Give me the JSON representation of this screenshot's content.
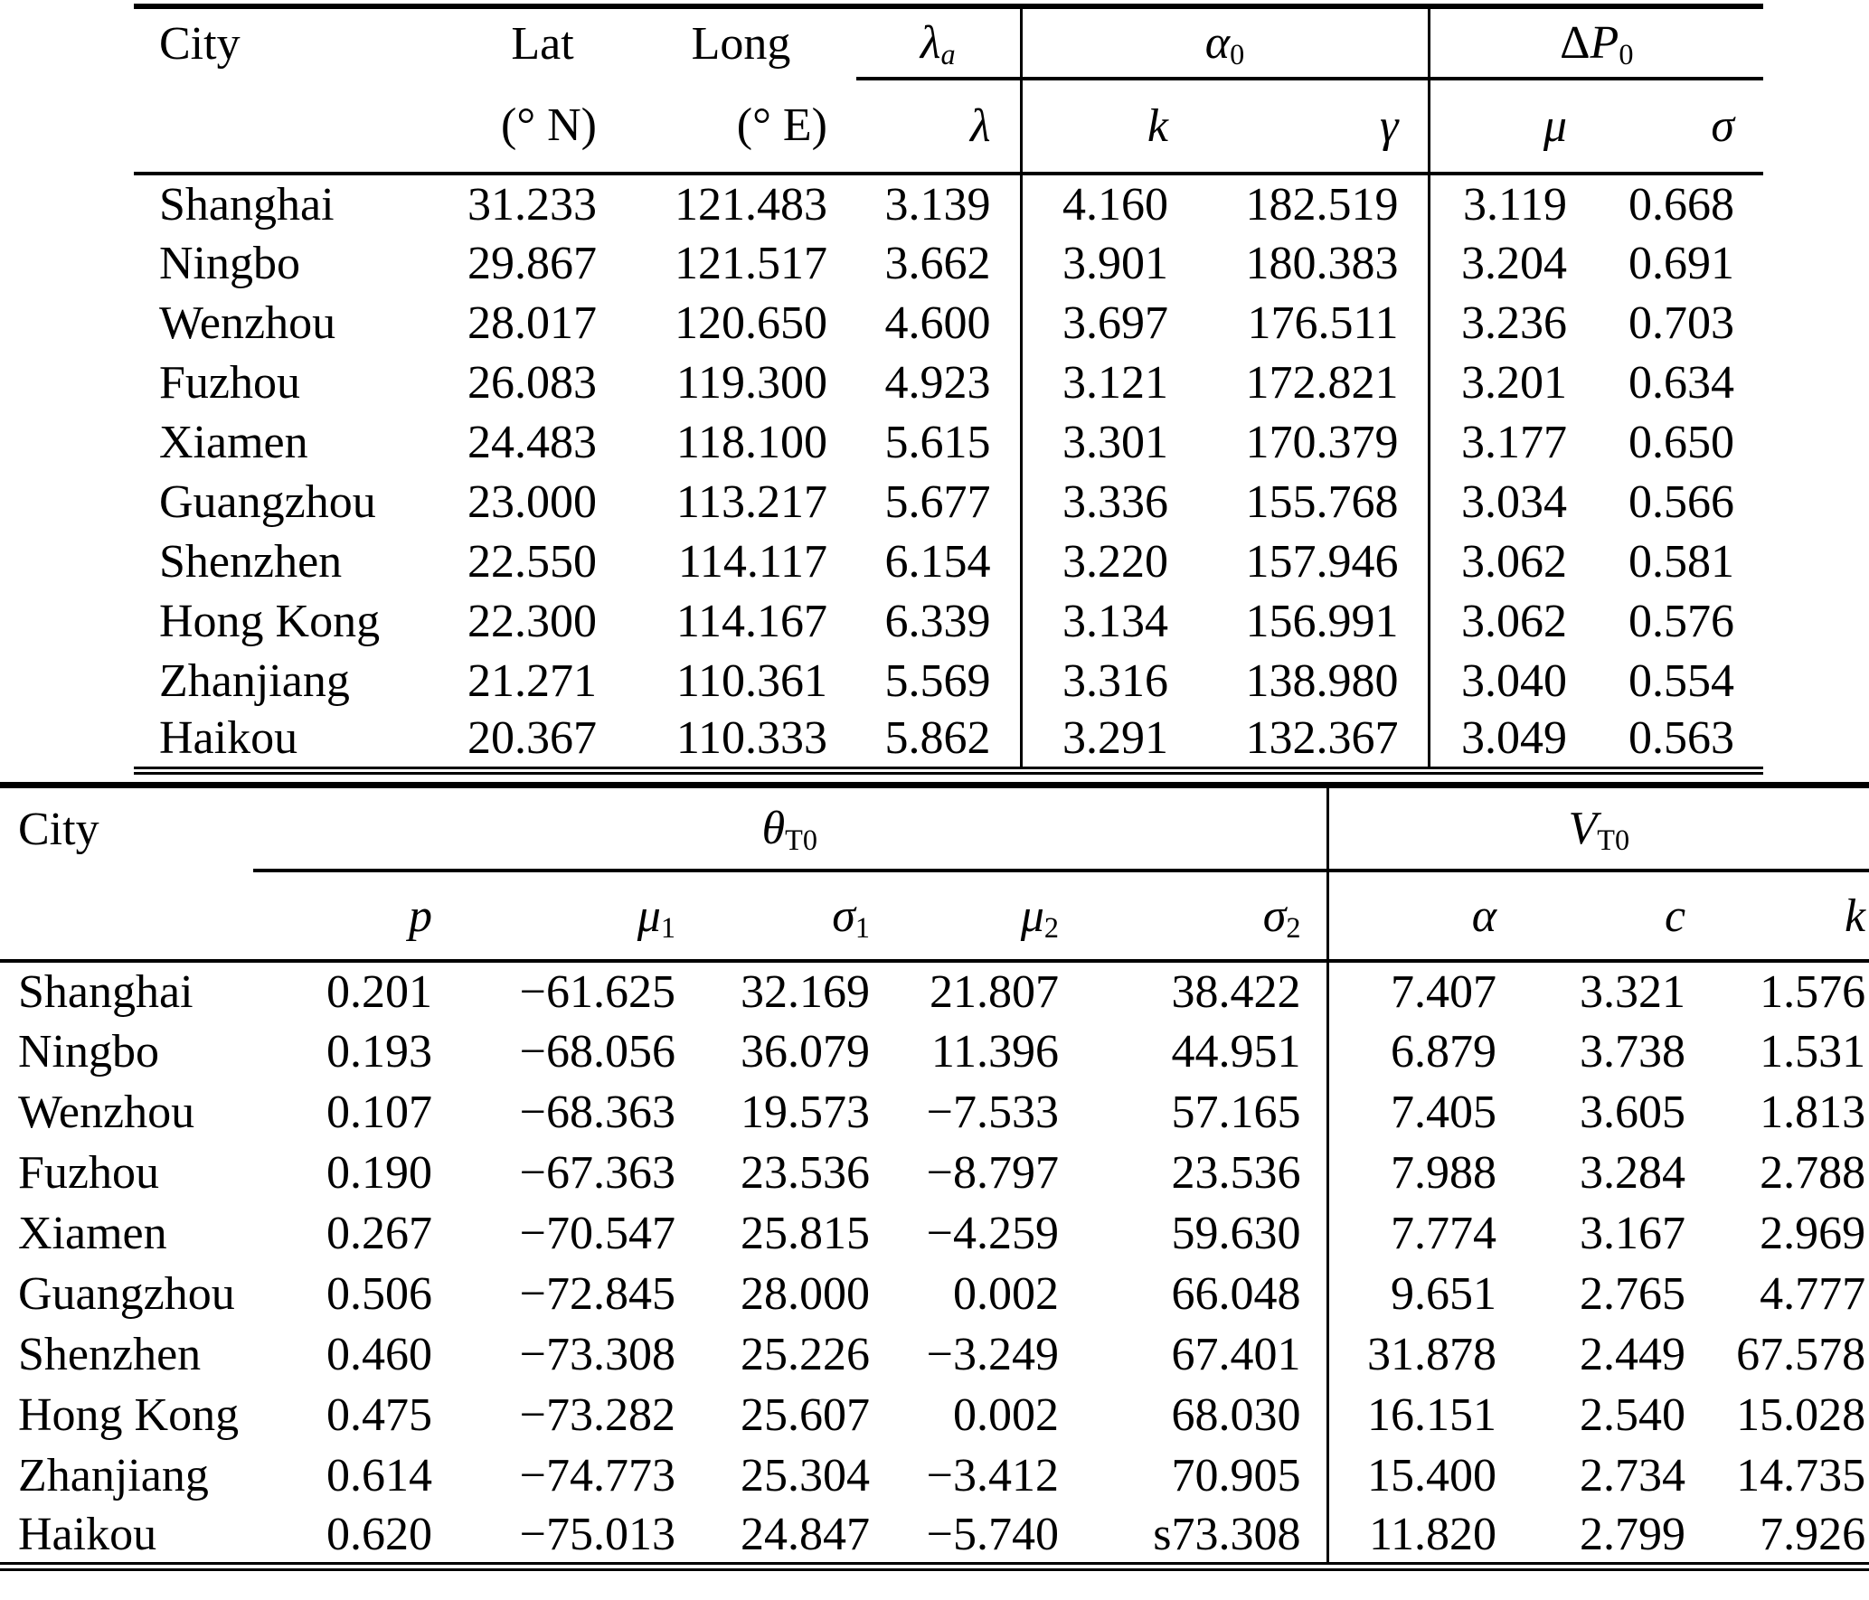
{
  "table1": {
    "headers": {
      "city": "City",
      "lat": "Lat",
      "lat_unit": "(° N)",
      "long": "Long",
      "long_unit": "(° E)",
      "lambda_a": {
        "base": "λ",
        "sub": "a"
      },
      "lambda": "λ",
      "alpha_0": {
        "base": "α",
        "sub": "0"
      },
      "k": "k",
      "gamma": "γ",
      "delta_P0": {
        "prefix": "Δ",
        "base": "P",
        "sub": "0"
      },
      "mu": "μ",
      "sigma": "σ"
    },
    "rows": [
      [
        "Shanghai",
        "31.233",
        "121.483",
        "3.139",
        "4.160",
        "182.519",
        "3.119",
        "0.668"
      ],
      [
        "Ningbo",
        "29.867",
        "121.517",
        "3.662",
        "3.901",
        "180.383",
        "3.204",
        "0.691"
      ],
      [
        "Wenzhou",
        "28.017",
        "120.650",
        "4.600",
        "3.697",
        "176.511",
        "3.236",
        "0.703"
      ],
      [
        "Fuzhou",
        "26.083",
        "119.300",
        "4.923",
        "3.121",
        "172.821",
        "3.201",
        "0.634"
      ],
      [
        "Xiamen",
        "24.483",
        "118.100",
        "5.615",
        "3.301",
        "170.379",
        "3.177",
        "0.650"
      ],
      [
        "Guangzhou",
        "23.000",
        "113.217",
        "5.677",
        "3.336",
        "155.768",
        "3.034",
        "0.566"
      ],
      [
        "Shenzhen",
        "22.550",
        "114.117",
        "6.154",
        "3.220",
        "157.946",
        "3.062",
        "0.581"
      ],
      [
        "Hong Kong",
        "22.300",
        "114.167",
        "6.339",
        "3.134",
        "156.991",
        "3.062",
        "0.576"
      ],
      [
        "Zhanjiang",
        "21.271",
        "110.361",
        "5.569",
        "3.316",
        "138.980",
        "3.040",
        "0.554"
      ],
      [
        "Haikou",
        "20.367",
        "110.333",
        "5.862",
        "3.291",
        "132.367",
        "3.049",
        "0.563"
      ]
    ]
  },
  "table2": {
    "headers": {
      "city": "City",
      "theta_T0": {
        "base": "θ",
        "sub": "T0"
      },
      "V_T0": {
        "base": "V",
        "sub": "T0"
      },
      "p": "p",
      "mu1": {
        "base": "μ",
        "sub": "1"
      },
      "sigma1": {
        "base": "σ",
        "sub": "1"
      },
      "mu2": {
        "base": "μ",
        "sub": "2"
      },
      "sigma2": {
        "base": "σ",
        "sub": "2"
      },
      "alpha": "α",
      "c": "c",
      "k": "k"
    },
    "rows": [
      [
        "Shanghai",
        "0.201",
        "−61.625",
        "32.169",
        "21.807",
        "38.422",
        "7.407",
        "3.321",
        "1.576"
      ],
      [
        "Ningbo",
        "0.193",
        "−68.056",
        "36.079",
        "11.396",
        "44.951",
        "6.879",
        "3.738",
        "1.531"
      ],
      [
        "Wenzhou",
        "0.107",
        "−68.363",
        "19.573",
        "−7.533",
        "57.165",
        "7.405",
        "3.605",
        "1.813"
      ],
      [
        "Fuzhou",
        "0.190",
        "−67.363",
        "23.536",
        "−8.797",
        "23.536",
        "7.988",
        "3.284",
        "2.788"
      ],
      [
        "Xiamen",
        "0.267",
        "−70.547",
        "25.815",
        "−4.259",
        "59.630",
        "7.774",
        "3.167",
        "2.969"
      ],
      [
        "Guangzhou",
        "0.506",
        "−72.845",
        "28.000",
        "0.002",
        "66.048",
        "9.651",
        "2.765",
        "4.777"
      ],
      [
        "Shenzhen",
        "0.460",
        "−73.308",
        "25.226",
        "−3.249",
        "67.401",
        "31.878",
        "2.449",
        "67.578"
      ],
      [
        "Hong Kong",
        "0.475",
        "−73.282",
        "25.607",
        "0.002",
        "68.030",
        "16.151",
        "2.540",
        "15.028"
      ],
      [
        "Zhanjiang",
        "0.614",
        "−74.773",
        "25.304",
        "−3.412",
        "70.905",
        "15.400",
        "2.734",
        "14.735"
      ],
      [
        "Haikou",
        "0.620",
        "−75.013",
        "24.847",
        "−5.740",
        "s73.308",
        "11.820",
        "2.799",
        "7.926"
      ]
    ]
  }
}
